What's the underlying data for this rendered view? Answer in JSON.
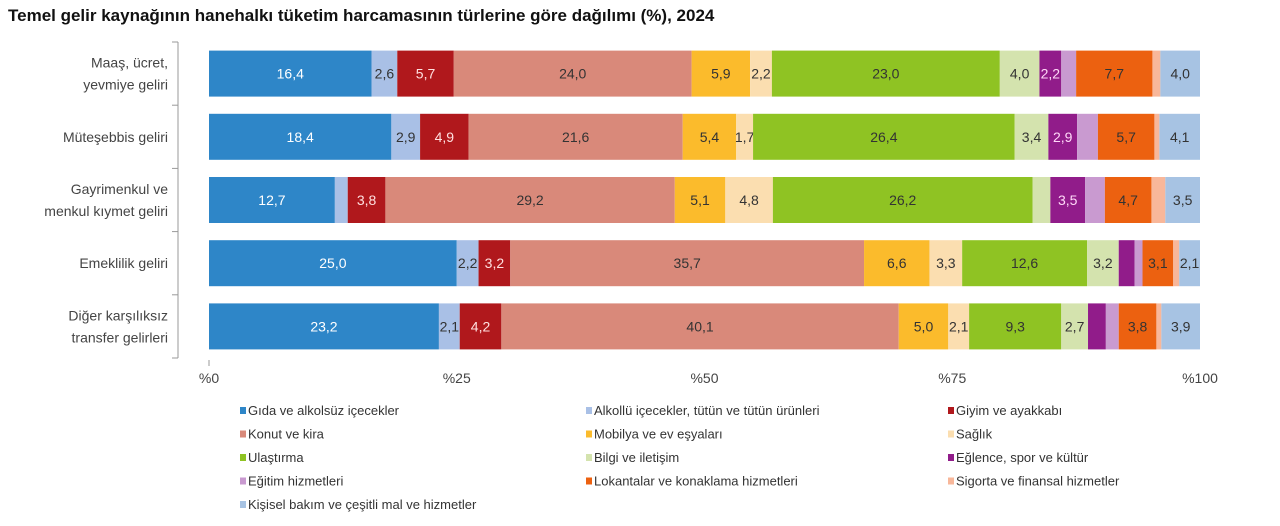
{
  "chart_data": {
    "type": "bar",
    "orientation": "horizontal",
    "stacked": true,
    "title": "Temel gelir kaynağının hanehalkı tüketim harcamasının türlerine göre dağılımı (%), 2024",
    "xlabel": "",
    "ylabel": "",
    "xlim": [
      0,
      100
    ],
    "x_ticks": [
      "%0",
      "%25",
      "%50",
      "%75",
      "%100"
    ],
    "x_tick_values": [
      0,
      25,
      50,
      75,
      100
    ],
    "legend_position": "bottom",
    "categories": [
      [
        "Maaş, ücret,",
        "yevmiye geliri"
      ],
      [
        "Müteşebbis geliri"
      ],
      [
        "Gayrimenkul ve",
        "menkul kıymet geliri"
      ],
      [
        "Emeklilik geliri"
      ],
      [
        "Diğer karşılıksız",
        "transfer gelirleri"
      ]
    ],
    "series": [
      {
        "name": "Gıda ve alkolsüz içecekler",
        "color": "#2e86c8",
        "label_color": "#ffffff",
        "values": [
          16.4,
          18.4,
          12.7,
          25.0,
          23.2
        ],
        "labeled": [
          true,
          true,
          true,
          true,
          true
        ]
      },
      {
        "name": "Alkollü içecekler, tütün ve tütün ürünleri",
        "color": "#a9c0e6",
        "label_color": "#333333",
        "values": [
          2.6,
          2.9,
          1.3,
          2.2,
          2.1
        ],
        "labeled": [
          true,
          true,
          false,
          true,
          true
        ]
      },
      {
        "name": "Giyim ve ayakkabı",
        "color": "#b0181c",
        "label_color": "#ffe0e0",
        "values": [
          5.7,
          4.9,
          3.8,
          3.2,
          4.2
        ],
        "labeled": [
          true,
          true,
          true,
          true,
          true
        ]
      },
      {
        "name": "Konut ve kira",
        "color": "#d9897a",
        "label_color": "#333333",
        "values": [
          24.0,
          21.6,
          29.2,
          35.7,
          40.1
        ],
        "labeled": [
          true,
          true,
          true,
          true,
          true
        ]
      },
      {
        "name": "Mobilya ve ev eşyaları",
        "color": "#fbbb2c",
        "label_color": "#333333",
        "values": [
          5.9,
          5.4,
          5.1,
          6.6,
          5.0
        ],
        "labeled": [
          true,
          true,
          true,
          true,
          true
        ]
      },
      {
        "name": "Sağlık",
        "color": "#fbdeb0",
        "label_color": "#333333",
        "values": [
          2.2,
          1.7,
          4.8,
          3.3,
          2.1
        ],
        "labeled": [
          true,
          true,
          true,
          true,
          true
        ]
      },
      {
        "name": "Ulaştırma",
        "color": "#8fc323",
        "label_color": "#333333",
        "values": [
          23.0,
          26.4,
          26.2,
          12.6,
          9.3
        ],
        "labeled": [
          true,
          true,
          true,
          true,
          true
        ]
      },
      {
        "name": "Bilgi ve iletişim",
        "color": "#d4e3ae",
        "label_color": "#333333",
        "values": [
          4.0,
          3.4,
          1.8,
          3.2,
          2.7
        ],
        "labeled": [
          true,
          true,
          false,
          true,
          true
        ]
      },
      {
        "name": "Eğlence, spor ve kültür",
        "color": "#911c8a",
        "label_color": "#ffd8f8",
        "values": [
          2.2,
          2.9,
          3.5,
          1.6,
          1.8
        ],
        "labeled": [
          true,
          true,
          true,
          false,
          false
        ]
      },
      {
        "name": "Eğitim hizmetleri",
        "color": "#c99ad0",
        "label_color": "#333333",
        "values": [
          1.5,
          2.1,
          2.0,
          0.8,
          1.3
        ],
        "labeled": [
          false,
          false,
          false,
          false,
          false
        ]
      },
      {
        "name": "Lokantalar ve konaklama hizmetleri",
        "color": "#ec6110",
        "label_color": "#333333",
        "values": [
          7.7,
          5.7,
          4.7,
          3.1,
          3.8
        ],
        "labeled": [
          true,
          true,
          true,
          true,
          true
        ]
      },
      {
        "name": "Sigorta ve finansal hizmetler",
        "color": "#f8b79a",
        "label_color": "#333333",
        "values": [
          0.8,
          0.5,
          1.4,
          0.6,
          0.5
        ],
        "labeled": [
          false,
          false,
          false,
          false,
          false
        ]
      },
      {
        "name": "Kişisel bakım ve çeşitli mal ve hizmetler",
        "color": "#a7c3e3",
        "label_color": "#333333",
        "values": [
          4.0,
          4.1,
          3.5,
          2.1,
          3.9
        ],
        "labeled": [
          true,
          true,
          true,
          true,
          true
        ]
      }
    ]
  }
}
